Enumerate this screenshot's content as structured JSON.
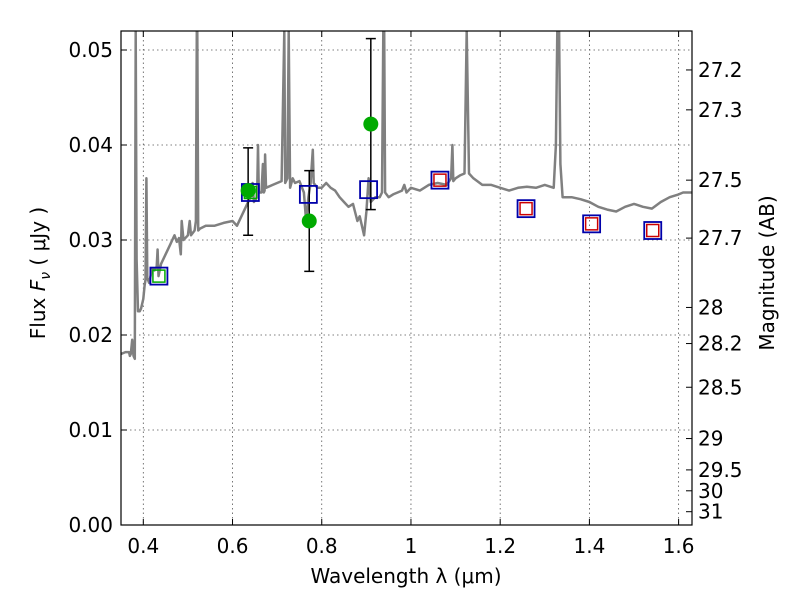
{
  "chart_data": {
    "type": "scatter",
    "xlabel": "Wavelength  λ (μm)",
    "ylabel": "Flux  F_ν  ( μJy )",
    "ylabel_parts": {
      "pre": "Flux  ",
      "var": "F",
      "sub": "ν",
      "post": "  ( μJy )"
    },
    "ylabel_right": "Magnitude (AB)",
    "xlim": [
      0.35,
      1.63
    ],
    "ylim": [
      0.0,
      0.052
    ],
    "grid": true,
    "x_ticks": [
      0.4,
      0.6,
      0.8,
      1.0,
      1.2,
      1.4,
      1.6
    ],
    "x_tick_labels": [
      "0.4",
      "0.6",
      "0.8",
      "1",
      "1.2",
      "1.4",
      "1.6"
    ],
    "y_ticks": [
      0.0,
      0.01,
      0.02,
      0.03,
      0.04,
      0.05
    ],
    "y_tick_labels": [
      "0.00",
      "0.01",
      "0.02",
      "0.03",
      "0.04",
      "0.05"
    ],
    "mag_ticks": [
      {
        "label": "27.2",
        "flux": 0.0479
      },
      {
        "label": "27.3",
        "flux": 0.0437
      },
      {
        "label": "27.5",
        "flux": 0.0363
      },
      {
        "label": "27.7",
        "flux": 0.0302
      },
      {
        "label": "28",
        "flux": 0.0229
      },
      {
        "label": "28.2",
        "flux": 0.0191
      },
      {
        "label": "28.5",
        "flux": 0.0145
      },
      {
        "label": "29",
        "flux": 0.0091
      },
      {
        "label": "29.5",
        "flux": 0.0058
      },
      {
        "label": "30",
        "flux": 0.0036
      },
      {
        "label": "31",
        "flux": 0.0014
      }
    ],
    "colors": {
      "model": "#808080",
      "observed": "#00aa00",
      "model_photometry": "#0000aa",
      "measured": "#cc0000",
      "errorbar": "#000000",
      "grid": "#555555"
    },
    "series": [
      {
        "role": "model_spectrum",
        "style": "line",
        "points": [
          [
            0.35,
            0.018
          ],
          [
            0.36,
            0.0182
          ],
          [
            0.368,
            0.0182
          ],
          [
            0.37,
            0.0178
          ],
          [
            0.372,
            0.018
          ],
          [
            0.375,
            0.0195
          ],
          [
            0.378,
            0.0178
          ],
          [
            0.381,
            0.0175
          ],
          [
            0.383,
            0.052
          ],
          [
            0.385,
            0.028
          ],
          [
            0.388,
            0.0225
          ],
          [
            0.392,
            0.0225
          ],
          [
            0.395,
            0.0228
          ],
          [
            0.4,
            0.0238
          ],
          [
            0.403,
            0.0252
          ],
          [
            0.405,
            0.0258
          ],
          [
            0.407,
            0.0365
          ],
          [
            0.409,
            0.026
          ],
          [
            0.413,
            0.0255
          ],
          [
            0.42,
            0.027
          ],
          [
            0.425,
            0.0268
          ],
          [
            0.43,
            0.0272
          ],
          [
            0.432,
            0.029
          ],
          [
            0.434,
            0.0262
          ],
          [
            0.44,
            0.0275
          ],
          [
            0.45,
            0.0285
          ],
          [
            0.46,
            0.0295
          ],
          [
            0.465,
            0.03
          ],
          [
            0.47,
            0.0305
          ],
          [
            0.475,
            0.0298
          ],
          [
            0.48,
            0.0302
          ],
          [
            0.484,
            0.0285
          ],
          [
            0.486,
            0.032
          ],
          [
            0.49,
            0.03
          ],
          [
            0.5,
            0.0305
          ],
          [
            0.504,
            0.032
          ],
          [
            0.507,
            0.0305
          ],
          [
            0.515,
            0.031
          ],
          [
            0.518,
            0.032
          ],
          [
            0.52,
            0.052
          ],
          [
            0.521,
            0.052
          ],
          [
            0.523,
            0.031
          ],
          [
            0.527,
            0.0312
          ],
          [
            0.54,
            0.0315
          ],
          [
            0.56,
            0.0315
          ],
          [
            0.58,
            0.0318
          ],
          [
            0.6,
            0.032
          ],
          [
            0.61,
            0.0315
          ],
          [
            0.62,
            0.0325
          ],
          [
            0.63,
            0.0335
          ],
          [
            0.64,
            0.0345
          ],
          [
            0.645,
            0.036
          ],
          [
            0.648,
            0.034
          ],
          [
            0.655,
            0.0345
          ],
          [
            0.657,
            0.04
          ],
          [
            0.659,
            0.035
          ],
          [
            0.665,
            0.035
          ],
          [
            0.668,
            0.038
          ],
          [
            0.67,
            0.035
          ],
          [
            0.672,
            0.0352
          ],
          [
            0.673,
            0.039
          ],
          [
            0.675,
            0.0355
          ],
          [
            0.69,
            0.0358
          ],
          [
            0.7,
            0.036
          ],
          [
            0.71,
            0.0362
          ],
          [
            0.716,
            0.052
          ],
          [
            0.718,
            0.036
          ],
          [
            0.723,
            0.0365
          ],
          [
            0.726,
            0.052
          ],
          [
            0.729,
            0.0355
          ],
          [
            0.735,
            0.0365
          ],
          [
            0.74,
            0.036
          ],
          [
            0.75,
            0.0362
          ],
          [
            0.76,
            0.035
          ],
          [
            0.765,
            0.032
          ],
          [
            0.77,
            0.0345
          ],
          [
            0.775,
            0.036
          ],
          [
            0.78,
            0.0395
          ],
          [
            0.782,
            0.036
          ],
          [
            0.79,
            0.0355
          ],
          [
            0.8,
            0.0355
          ],
          [
            0.81,
            0.036
          ],
          [
            0.82,
            0.0355
          ],
          [
            0.83,
            0.0352
          ],
          [
            0.84,
            0.0345
          ],
          [
            0.85,
            0.034
          ],
          [
            0.86,
            0.0335
          ],
          [
            0.87,
            0.0338
          ],
          [
            0.88,
            0.032
          ],
          [
            0.885,
            0.0325
          ],
          [
            0.89,
            0.0315
          ],
          [
            0.895,
            0.0305
          ],
          [
            0.9,
            0.033
          ],
          [
            0.905,
            0.0365
          ],
          [
            0.91,
            0.034
          ],
          [
            0.92,
            0.0345
          ],
          [
            0.93,
            0.0345
          ],
          [
            0.935,
            0.035
          ],
          [
            0.938,
            0.052
          ],
          [
            0.94,
            0.052
          ],
          [
            0.942,
            0.035
          ],
          [
            0.95,
            0.0345
          ],
          [
            0.96,
            0.0348
          ],
          [
            0.97,
            0.035
          ],
          [
            0.98,
            0.0352
          ],
          [
            0.985,
            0.0358
          ],
          [
            0.99,
            0.035
          ],
          [
            1.0,
            0.0355
          ],
          [
            1.02,
            0.0352
          ],
          [
            1.04,
            0.0358
          ],
          [
            1.06,
            0.036
          ],
          [
            1.08,
            0.0358
          ],
          [
            1.09,
            0.0365
          ],
          [
            1.093,
            0.04
          ],
          [
            1.095,
            0.0362
          ],
          [
            1.1,
            0.0365
          ],
          [
            1.11,
            0.0368
          ],
          [
            1.12,
            0.037
          ],
          [
            1.125,
            0.052
          ],
          [
            1.13,
            0.037
          ],
          [
            1.14,
            0.0365
          ],
          [
            1.16,
            0.0358
          ],
          [
            1.18,
            0.0358
          ],
          [
            1.2,
            0.0355
          ],
          [
            1.22,
            0.0352
          ],
          [
            1.24,
            0.0355
          ],
          [
            1.26,
            0.0356
          ],
          [
            1.28,
            0.0355
          ],
          [
            1.3,
            0.0358
          ],
          [
            1.32,
            0.0355
          ],
          [
            1.325,
            0.04
          ],
          [
            1.328,
            0.052
          ],
          [
            1.332,
            0.052
          ],
          [
            1.335,
            0.038
          ],
          [
            1.34,
            0.0345
          ],
          [
            1.36,
            0.0345
          ],
          [
            1.38,
            0.0343
          ],
          [
            1.4,
            0.034
          ],
          [
            1.42,
            0.0335
          ],
          [
            1.44,
            0.0332
          ],
          [
            1.46,
            0.033
          ],
          [
            1.48,
            0.0335
          ],
          [
            1.5,
            0.0338
          ],
          [
            1.52,
            0.0335
          ],
          [
            1.54,
            0.0333
          ],
          [
            1.56,
            0.034
          ],
          [
            1.58,
            0.0345
          ],
          [
            1.6,
            0.0348
          ],
          [
            1.61,
            0.035
          ],
          [
            1.63,
            0.035
          ]
        ]
      },
      {
        "role": "observed_flux",
        "style": "filled-circle",
        "points": [
          {
            "x": 0.635,
            "y": 0.0352,
            "yerr_low": 0.0305,
            "yerr_high": 0.0397
          },
          {
            "x": 0.772,
            "y": 0.032,
            "yerr_low": 0.0267,
            "yerr_high": 0.0373
          },
          {
            "x": 0.91,
            "y": 0.0422,
            "yerr_low": 0.0332,
            "yerr_high": 0.0512
          }
        ]
      },
      {
        "role": "model_photometry",
        "style": "open-square",
        "points": [
          {
            "x": 0.435,
            "y": 0.0262
          },
          {
            "x": 0.64,
            "y": 0.035
          },
          {
            "x": 0.77,
            "y": 0.0348
          },
          {
            "x": 0.905,
            "y": 0.0353
          },
          {
            "x": 1.065,
            "y": 0.0363
          },
          {
            "x": 1.258,
            "y": 0.0333
          },
          {
            "x": 1.405,
            "y": 0.0317
          },
          {
            "x": 1.542,
            "y": 0.031
          }
        ]
      },
      {
        "role": "measured_photometry",
        "style": "open-square-small",
        "points": [
          {
            "x": 0.435,
            "y": 0.0262,
            "color": "#00aa00"
          },
          {
            "x": 0.64,
            "y": 0.035,
            "color": "#00aa00"
          },
          {
            "x": 1.065,
            "y": 0.0363,
            "color": "#cc0000"
          },
          {
            "x": 1.258,
            "y": 0.0333,
            "color": "#cc0000"
          },
          {
            "x": 1.405,
            "y": 0.0317,
            "color": "#cc0000"
          },
          {
            "x": 1.542,
            "y": 0.031,
            "color": "#cc0000"
          }
        ]
      }
    ]
  }
}
